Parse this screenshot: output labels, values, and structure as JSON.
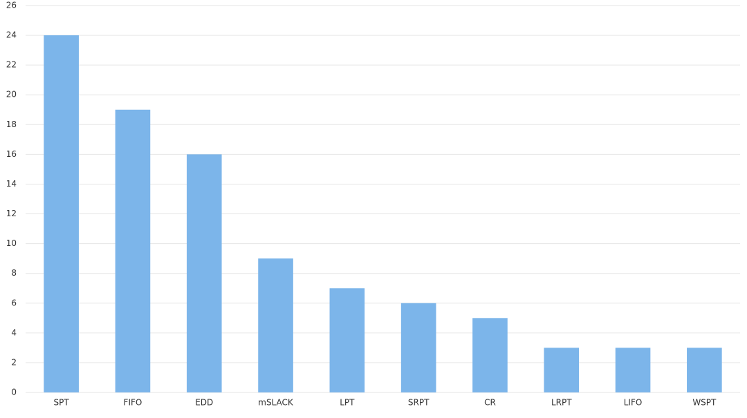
{
  "chart_data": {
    "type": "bar",
    "categories": [
      "SPT",
      "FIFO",
      "EDD",
      "mSLACK",
      "LPT",
      "SRPT",
      "CR",
      "LRPT",
      "LIFO",
      "WSPT"
    ],
    "values": [
      24,
      19,
      16,
      9,
      7,
      6,
      5,
      3,
      3,
      3
    ],
    "color": "#7cb5ea",
    "ylim": [
      0,
      26
    ],
    "yticks": [
      0,
      2,
      4,
      6,
      8,
      10,
      12,
      14,
      16,
      18,
      20,
      22,
      24,
      26
    ],
    "grid": true
  }
}
